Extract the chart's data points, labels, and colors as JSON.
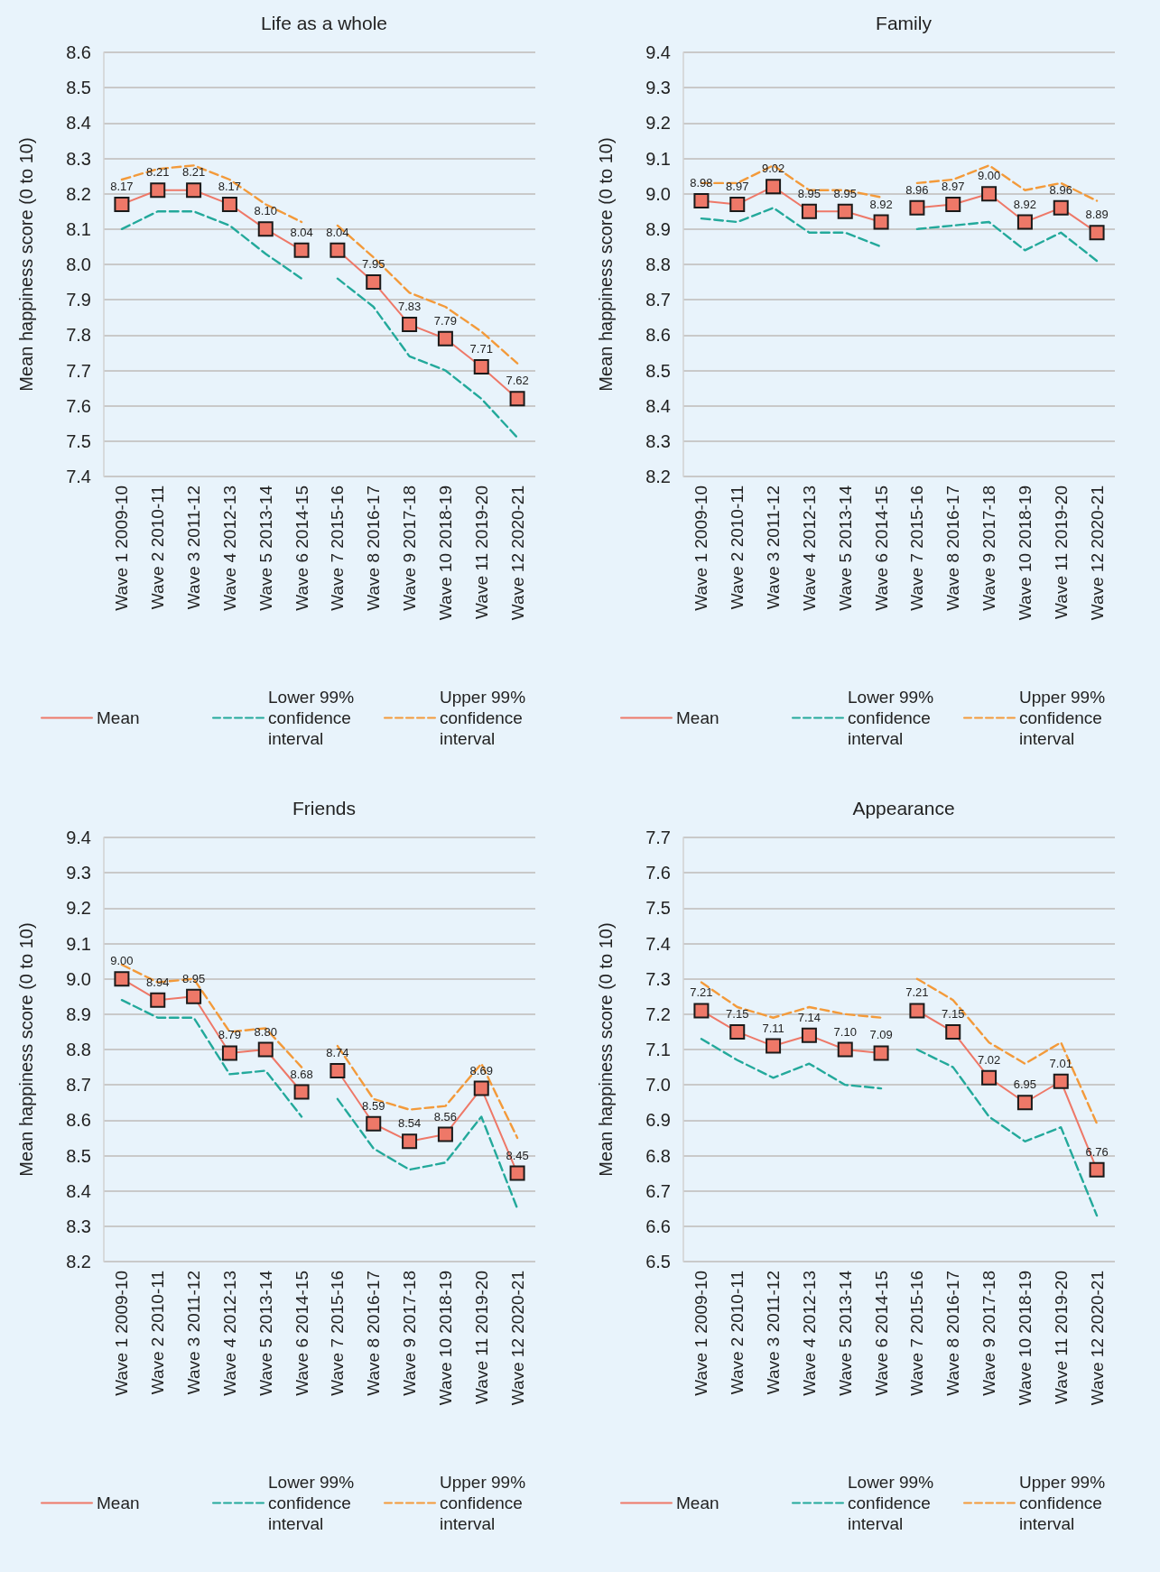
{
  "chart_data": [
    {
      "type": "line",
      "title": "Life as a whole",
      "ylabel": "Mean happiness score (0 to 10)",
      "categories": [
        "Wave 1 2009-10",
        "Wave 2 2010-11",
        "Wave 3 2011-12",
        "Wave 4 2012-13",
        "Wave 5 2013-14",
        "Wave 6 2014-15",
        "Wave 7 2015-16",
        "Wave 8 2016-17",
        "Wave 9 2017-18",
        "Wave 10 2018-19",
        "Wave 11 2019-20",
        "Wave 12 2020-21"
      ],
      "ylim": [
        7.4,
        8.6
      ],
      "yticks": [
        7.4,
        7.5,
        7.6,
        7.7,
        7.8,
        7.9,
        {
          "value": 8,
          "label": "8.0"
        },
        8.1,
        8.2,
        8.3,
        8.4,
        8.5,
        8.6
      ],
      "grid": "y",
      "legend": "bottom",
      "series": [
        {
          "name": "Mean",
          "color": "#ee7868",
          "marker": "square",
          "line_style": "solid",
          "values": [
            8.17,
            8.21,
            8.21,
            8.17,
            8.1,
            8.04,
            null,
            null,
            null,
            null,
            null,
            null
          ],
          "value_labels": [
            "8.17",
            "8.21",
            "8.21",
            "8.17",
            "8.10",
            "8.04",
            null,
            null,
            null,
            null,
            null,
            null
          ]
        },
        {
          "name": "Lower 99% confidence interval",
          "color": "#23a99b",
          "marker": "none",
          "line_style": "dashed",
          "values": [
            8.1,
            8.15,
            8.15,
            8.11,
            8.03,
            7.96,
            null,
            null,
            null,
            null,
            null,
            null
          ]
        },
        {
          "name": "Upper 99% confidence interval",
          "color": "#f39a3a",
          "marker": "none",
          "line_style": "dashed",
          "values": [
            8.24,
            8.27,
            8.28,
            8.24,
            8.17,
            8.12,
            null,
            null,
            null,
            null,
            null,
            null
          ]
        },
        {
          "color": "#ee7868",
          "marker": "square",
          "line_style": "solid",
          "values": [
            null,
            null,
            null,
            null,
            null,
            null,
            8.04,
            7.95,
            7.83,
            7.79,
            7.71,
            7.62
          ],
          "value_labels": [
            null,
            null,
            null,
            null,
            null,
            null,
            "8.04",
            "7.95",
            "7.83",
            "7.79",
            "7.71",
            "7.62"
          ]
        },
        {
          "color": "#23a99b",
          "marker": "none",
          "line_style": "dashed",
          "values": [
            null,
            null,
            null,
            null,
            null,
            null,
            7.96,
            7.88,
            7.74,
            7.7,
            7.62,
            7.51
          ]
        },
        {
          "color": "#f39a3a",
          "marker": "none",
          "line_style": "dashed",
          "values": [
            null,
            null,
            null,
            null,
            null,
            null,
            8.11,
            8.02,
            7.92,
            7.88,
            7.81,
            7.72
          ]
        }
      ]
    },
    {
      "type": "line",
      "title": "Family",
      "ylabel": "Mean happiness score (0 to 10)",
      "categories": [
        "Wave 1 2009-10",
        "Wave 2 2010-11",
        "Wave 3 2011-12",
        "Wave 4 2012-13",
        "Wave 5 2013-14",
        "Wave 6 2014-15",
        "Wave 7 2015-16",
        "Wave 8 2016-17",
        "Wave 9 2017-18",
        "Wave 10 2018-19",
        "Wave 11 2019-20",
        "Wave 12 2020-21"
      ],
      "ylim": [
        8.2,
        9.4
      ],
      "yticks": [
        8.2,
        8.3,
        8.4,
        8.5,
        8.6,
        8.7,
        8.8,
        8.9,
        {
          "value": 9,
          "label": "9.0"
        },
        9.1,
        9.2,
        9.3,
        9.4
      ],
      "grid": "y",
      "legend": "bottom",
      "series": [
        {
          "name": "Mean",
          "color": "#ee7868",
          "marker": "square",
          "line_style": "solid",
          "values": [
            8.98,
            8.97,
            9.02,
            8.95,
            8.95,
            8.92,
            null,
            null,
            null,
            null,
            null,
            null
          ],
          "value_labels": [
            "8.98",
            "8.97",
            "9.02",
            "8.95",
            "8.95",
            "8.92",
            null,
            null,
            null,
            null,
            null,
            null
          ]
        },
        {
          "name": "Lower 99% confidence interval",
          "color": "#23a99b",
          "marker": "none",
          "line_style": "dashed",
          "values": [
            8.93,
            8.92,
            8.96,
            8.89,
            8.89,
            8.85,
            null,
            null,
            null,
            null,
            null,
            null
          ]
        },
        {
          "name": "Upper 99% confidence interval",
          "color": "#f39a3a",
          "marker": "none",
          "line_style": "dashed",
          "values": [
            9.03,
            9.03,
            9.08,
            9.01,
            9.01,
            8.99,
            null,
            null,
            null,
            null,
            null,
            null
          ]
        },
        {
          "color": "#ee7868",
          "marker": "square",
          "line_style": "solid",
          "values": [
            null,
            null,
            null,
            null,
            null,
            null,
            8.96,
            8.97,
            9.0,
            8.92,
            8.96,
            8.89
          ],
          "value_labels": [
            null,
            null,
            null,
            null,
            null,
            null,
            "8.96",
            "8.97",
            "9.00",
            "8.92",
            "8.96",
            "8.89"
          ]
        },
        {
          "color": "#23a99b",
          "marker": "none",
          "line_style": "dashed",
          "values": [
            null,
            null,
            null,
            null,
            null,
            null,
            8.9,
            8.91,
            8.92,
            8.84,
            8.89,
            8.81
          ]
        },
        {
          "color": "#f39a3a",
          "marker": "none",
          "line_style": "dashed",
          "values": [
            null,
            null,
            null,
            null,
            null,
            null,
            9.03,
            9.04,
            9.08,
            9.01,
            9.03,
            8.98
          ]
        }
      ]
    },
    {
      "type": "line",
      "title": "Friends",
      "ylabel": "Mean happiness score (0 to 10)",
      "categories": [
        "Wave 1 2009-10",
        "Wave 2 2010-11",
        "Wave 3 2011-12",
        "Wave 4 2012-13",
        "Wave 5 2013-14",
        "Wave 6 2014-15",
        "Wave 7 2015-16",
        "Wave 8 2016-17",
        "Wave 9 2017-18",
        "Wave 10 2018-19",
        "Wave 11 2019-20",
        "Wave 12 2020-21"
      ],
      "ylim": [
        8.2,
        9.4
      ],
      "yticks": [
        8.2,
        8.3,
        8.4,
        8.5,
        8.6,
        8.7,
        8.8,
        8.9,
        {
          "value": 9,
          "label": "9.0"
        },
        9.1,
        9.2,
        9.3,
        9.4
      ],
      "grid": "y",
      "legend": "bottom",
      "series": [
        {
          "name": "Mean",
          "color": "#ee7868",
          "marker": "square",
          "line_style": "solid",
          "values": [
            9.0,
            8.94,
            8.95,
            8.79,
            8.8,
            8.68,
            null,
            null,
            null,
            null,
            null,
            null
          ],
          "value_labels": [
            "9.00",
            "8.94",
            "8.95",
            "8.79",
            "8.80",
            "8.68",
            null,
            null,
            null,
            null,
            null,
            null
          ]
        },
        {
          "name": "Lower 99% confidence interval",
          "color": "#23a99b",
          "marker": "none",
          "line_style": "dashed",
          "values": [
            8.94,
            8.89,
            8.89,
            8.73,
            8.74,
            8.61,
            null,
            null,
            null,
            null,
            null,
            null
          ]
        },
        {
          "name": "Upper 99% confidence interval",
          "color": "#f39a3a",
          "marker": "none",
          "line_style": "dashed",
          "values": [
            9.04,
            8.99,
            9.0,
            8.85,
            8.86,
            8.75,
            null,
            null,
            null,
            null,
            null,
            null
          ]
        },
        {
          "color": "#ee7868",
          "marker": "square",
          "line_style": "solid",
          "values": [
            null,
            null,
            null,
            null,
            null,
            null,
            8.74,
            8.59,
            8.54,
            8.56,
            8.69,
            8.45
          ],
          "value_labels": [
            null,
            null,
            null,
            null,
            null,
            null,
            "8.74",
            "8.59",
            "8.54",
            "8.56",
            "8.69",
            "8.45"
          ]
        },
        {
          "color": "#23a99b",
          "marker": "none",
          "line_style": "dashed",
          "values": [
            null,
            null,
            null,
            null,
            null,
            null,
            8.66,
            8.52,
            8.46,
            8.48,
            8.61,
            8.35
          ]
        },
        {
          "color": "#f39a3a",
          "marker": "none",
          "line_style": "dashed",
          "values": [
            null,
            null,
            null,
            null,
            null,
            null,
            8.81,
            8.66,
            8.63,
            8.64,
            8.76,
            8.55
          ]
        }
      ]
    },
    {
      "type": "line",
      "title": "Appearance",
      "ylabel": "Mean happiness score (0 to 10)",
      "categories": [
        "Wave 1 2009-10",
        "Wave 2 2010-11",
        "Wave 3 2011-12",
        "Wave 4 2012-13",
        "Wave 5 2013-14",
        "Wave 6 2014-15",
        "Wave 7 2015-16",
        "Wave 8 2016-17",
        "Wave 9 2017-18",
        "Wave 10 2018-19",
        "Wave 11 2019-20",
        "Wave 12 2020-21"
      ],
      "ylim": [
        6.5,
        7.7
      ],
      "yticks": [
        6.5,
        6.6,
        6.7,
        6.8,
        6.9,
        {
          "value": 7,
          "label": "7.0"
        },
        7.1,
        7.2,
        7.3,
        7.4,
        7.5,
        7.6,
        7.7
      ],
      "grid": "y",
      "legend": "bottom",
      "series": [
        {
          "name": "Mean",
          "color": "#ee7868",
          "marker": "square",
          "line_style": "solid",
          "values": [
            7.21,
            7.15,
            7.11,
            7.14,
            7.1,
            7.09,
            null,
            null,
            null,
            null,
            null,
            null
          ],
          "value_labels": [
            "7.21",
            "7.15",
            "7.11",
            "7.14",
            "7.10",
            "7.09",
            null,
            null,
            null,
            null,
            null,
            null
          ]
        },
        {
          "name": "Lower 99% confidence interval",
          "color": "#23a99b",
          "marker": "none",
          "line_style": "dashed",
          "values": [
            7.13,
            7.07,
            7.02,
            7.06,
            7.0,
            6.99,
            null,
            null,
            null,
            null,
            null,
            null
          ]
        },
        {
          "name": "Upper 99% confidence interval",
          "color": "#f39a3a",
          "marker": "none",
          "line_style": "dashed",
          "values": [
            7.29,
            7.22,
            7.19,
            7.22,
            7.2,
            7.19,
            null,
            null,
            null,
            null,
            null,
            null
          ]
        },
        {
          "color": "#ee7868",
          "marker": "square",
          "line_style": "solid",
          "values": [
            null,
            null,
            null,
            null,
            null,
            null,
            7.21,
            7.15,
            7.02,
            6.95,
            7.01,
            6.76
          ],
          "value_labels": [
            null,
            null,
            null,
            null,
            null,
            null,
            "7.21",
            "7.15",
            "7.02",
            "6.95",
            "7.01",
            "6.76"
          ]
        },
        {
          "color": "#23a99b",
          "marker": "none",
          "line_style": "dashed",
          "values": [
            null,
            null,
            null,
            null,
            null,
            null,
            7.1,
            7.05,
            6.91,
            6.84,
            6.88,
            6.63
          ]
        },
        {
          "color": "#f39a3a",
          "marker": "none",
          "line_style": "dashed",
          "values": [
            null,
            null,
            null,
            null,
            null,
            null,
            7.3,
            7.24,
            7.12,
            7.06,
            7.12,
            6.89
          ]
        }
      ]
    }
  ]
}
